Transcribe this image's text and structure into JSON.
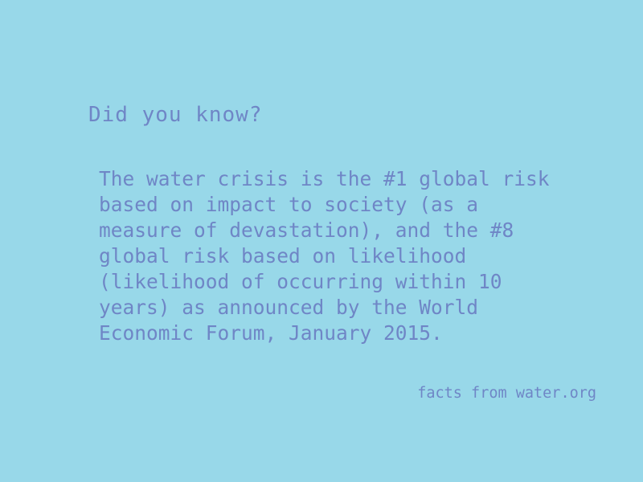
{
  "card": {
    "headline": "Did you know?",
    "fact": "The water crisis is the #1 global risk\nbased on impact to society (as a\nmeasure of devastation), and the #8\nglobal risk based on likelihood\n(likelihood of occurring within 10\nyears) as announced by the World\nEconomic Forum, January 2015.",
    "source": "facts from water.org"
  },
  "colors": {
    "background": "#98d8e9",
    "text": "#6f86c6"
  }
}
